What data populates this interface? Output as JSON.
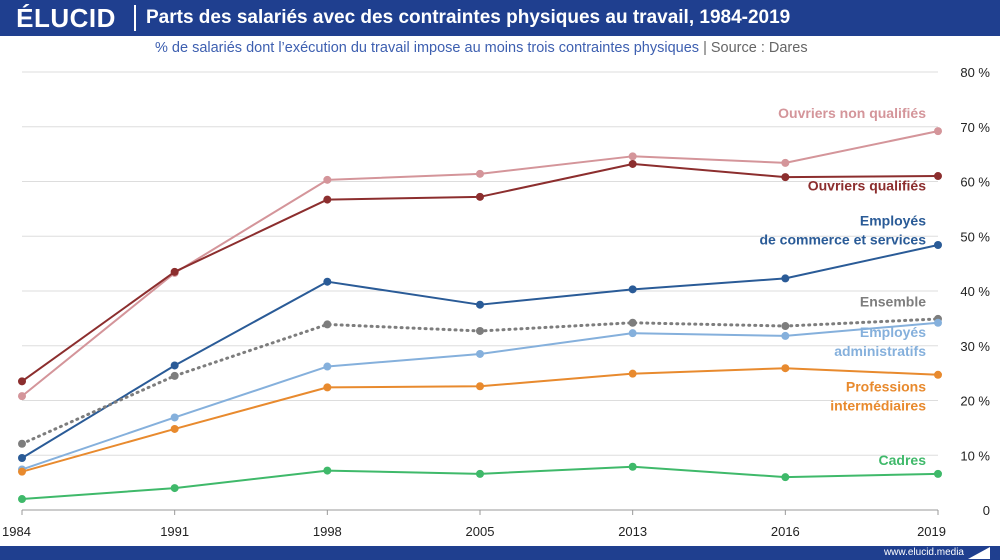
{
  "brand": {
    "logo": "ÉLUCID",
    "url": "www.elucid.media"
  },
  "header": {
    "title": "Parts des salariés avec des contraintes physiques au travail, 1984-2019",
    "subtitle": "% de salariés dont l’exécution du travail impose au moins trois contraintes physiques",
    "source": "|  Source : Dares"
  },
  "colors": {
    "header_bg": "#1f3f8f",
    "grid": "#dddddd"
  },
  "chart_data": {
    "type": "line",
    "x": [
      "1984",
      "1991",
      "1998",
      "2005",
      "2013",
      "2016",
      "2019"
    ],
    "ylim": [
      0,
      80
    ],
    "yticks": [
      {
        "v": 0,
        "label": "0"
      },
      {
        "v": 10,
        "label": "10 %"
      },
      {
        "v": 20,
        "label": "20 %"
      },
      {
        "v": 30,
        "label": "30 %"
      },
      {
        "v": 40,
        "label": "40 %"
      },
      {
        "v": 50,
        "label": "50 %"
      },
      {
        "v": 60,
        "label": "60 %"
      },
      {
        "v": 70,
        "label": "70 %"
      },
      {
        "v": 80,
        "label": "80 %"
      }
    ],
    "grid": true,
    "series": [
      {
        "name": "Ouvriers non qualifiés",
        "label_lines": [
          "Ouvriers non qualifiés"
        ],
        "color": "#d4959a",
        "dashed": false,
        "values": [
          20.8,
          43.3,
          60.3,
          61.4,
          64.6,
          63.4,
          69.2
        ],
        "label_value": 71.6
      },
      {
        "name": "Ouvriers qualifiés",
        "label_lines": [
          "Ouvriers qualifiés"
        ],
        "color": "#8c2e2e",
        "dashed": false,
        "values": [
          23.5,
          43.5,
          56.7,
          57.2,
          63.2,
          60.8,
          61.0
        ],
        "label_value": 58.4
      },
      {
        "name": "Employés de commerce et services",
        "label_lines": [
          "Employés",
          "de commerce et services"
        ],
        "color": "#2a5b97",
        "dashed": false,
        "values": [
          9.5,
          26.4,
          41.7,
          37.5,
          40.3,
          42.3,
          48.4
        ],
        "label_value": 52.0
      },
      {
        "name": "Ensemble",
        "label_lines": [
          "Ensemble"
        ],
        "color": "#7d7d7d",
        "dashed": true,
        "values": [
          12.1,
          24.5,
          33.9,
          32.7,
          34.2,
          33.6,
          34.9
        ],
        "label_value": 37.2
      },
      {
        "name": "Employés administratifs",
        "label_lines": [
          "Employés",
          "administratifs"
        ],
        "color": "#85b0dc",
        "dashed": false,
        "values": [
          7.4,
          16.9,
          26.2,
          28.5,
          32.3,
          31.8,
          34.2
        ],
        "label_value": 31.6
      },
      {
        "name": "Professions intermédiaires",
        "label_lines": [
          "Professions",
          "intermédiaires"
        ],
        "color": "#e88a2e",
        "dashed": false,
        "values": [
          7.0,
          14.8,
          22.4,
          22.6,
          24.9,
          25.9,
          24.7
        ],
        "label_value": 21.6
      },
      {
        "name": "Cadres",
        "label_lines": [
          "Cadres"
        ],
        "color": "#3fb96a",
        "dashed": false,
        "values": [
          2.0,
          4.0,
          7.2,
          6.6,
          7.9,
          6.0,
          6.6
        ],
        "label_value": 8.2
      }
    ]
  }
}
